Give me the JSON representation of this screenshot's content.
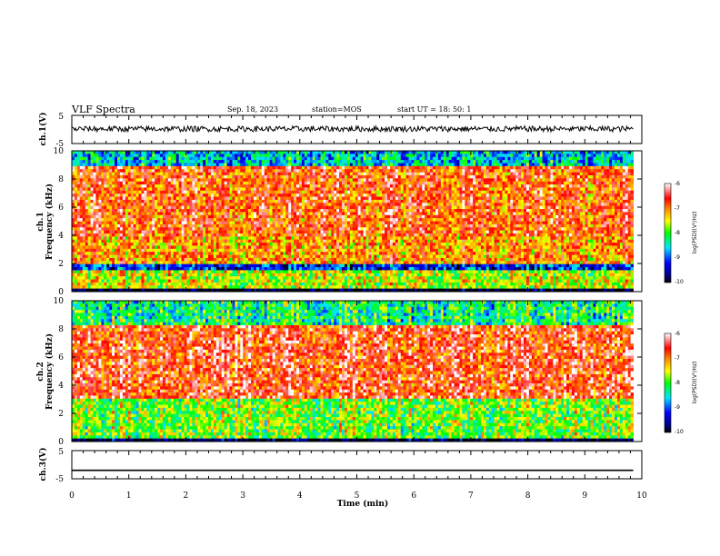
{
  "header": {
    "title": "VLF Spectra",
    "date": "Sep. 18, 2023",
    "station": "station=MOS",
    "start": "start  UT =  18: 50: 1"
  },
  "colors": {
    "spectrum": [
      "#000080",
      "#0000ff",
      "#00ffff",
      "#00ff00",
      "#ffff00",
      "#ffa500",
      "#ff0000",
      "#ffffff"
    ],
    "trace": "#000000"
  },
  "chart_data": [
    {
      "type": "line",
      "panel": "ch.1 waveform",
      "ylabel": "ch.1(V)",
      "ylim": [
        -5,
        5
      ],
      "y_ticks": [
        "5",
        "-5"
      ],
      "xlim": [
        0,
        10
      ],
      "series": [
        {
          "values_description_free": true,
          "mean": 0.2,
          "noise_amplitude": 0.25
        }
      ]
    },
    {
      "type": "heatmap",
      "panel": "ch.1 spectrogram",
      "ylabel": "ch.1",
      "ylabel2": "Frequency (kHz)",
      "ylim": [
        0,
        10
      ],
      "y_ticks": [
        "0",
        "2",
        "4",
        "6",
        "8",
        "10"
      ],
      "xlim": [
        0,
        9.85
      ],
      "colorbar": {
        "title": "log(PSD)(V²/Hz)",
        "range": [
          -10,
          -6
        ],
        "ticks": [
          "-6",
          "-7",
          "-8",
          "-9",
          "-10"
        ]
      },
      "profile": [
        {
          "f": [
            0,
            0.3
          ],
          "level": -10
        },
        {
          "f": [
            0.3,
            1.6
          ],
          "level": -7.6
        },
        {
          "f": [
            1.6,
            2.0
          ],
          "level": -9.2
        },
        {
          "f": [
            2.0,
            4.0
          ],
          "level": -7.1
        },
        {
          "f": [
            4.0,
            9.0
          ],
          "level": -6.8
        },
        {
          "f": [
            9.0,
            10.0
          ],
          "level": -8.6
        }
      ]
    },
    {
      "type": "heatmap",
      "panel": "ch.2 spectrogram",
      "ylabel": "ch.2",
      "ylabel2": "Frequency (kHz)",
      "ylim": [
        0,
        10
      ],
      "y_ticks": [
        "0",
        "2",
        "4",
        "6",
        "8",
        "10"
      ],
      "xlim": [
        0,
        9.85
      ],
      "colorbar": {
        "title": "log(PSD)(V²/Hz)",
        "range": [
          -10,
          -6
        ],
        "ticks": [
          "-6",
          "-7",
          "-8",
          "-9",
          "-10"
        ]
      },
      "profile": [
        {
          "f": [
            0,
            0.2
          ],
          "level": -9.8
        },
        {
          "f": [
            0.2,
            3.0
          ],
          "level": -7.8
        },
        {
          "f": [
            3.0,
            8.3
          ],
          "level": -6.6
        },
        {
          "f": [
            8.3,
            10.0
          ],
          "level": -8.2
        }
      ]
    },
    {
      "type": "line",
      "panel": "ch.3 waveform",
      "ylabel": "ch.3(V)",
      "ylim": [
        -5,
        5
      ],
      "y_ticks": [
        "5",
        "-5"
      ],
      "xlim": [
        0,
        10
      ],
      "xlabel": "Time  (min)",
      "x_ticks": [
        "0",
        "1",
        "2",
        "3",
        "4",
        "5",
        "6",
        "7",
        "8",
        "9",
        "10"
      ],
      "series": [
        {
          "constant": -2.0
        }
      ]
    }
  ]
}
